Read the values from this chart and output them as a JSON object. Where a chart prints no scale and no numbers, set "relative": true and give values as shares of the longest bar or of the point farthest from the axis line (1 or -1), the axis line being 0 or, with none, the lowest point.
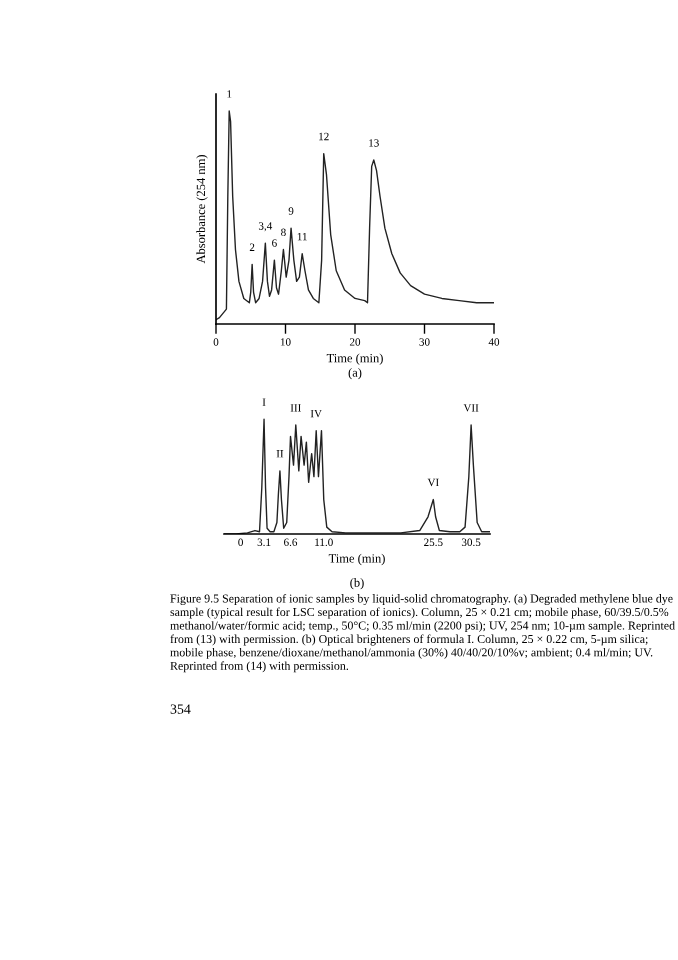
{
  "chart_data": [
    {
      "type": "line",
      "relative": true,
      "xlabel": "Time (min)",
      "ylabel": "Absorbance (254 nm)",
      "xlim": [
        0,
        40
      ],
      "xticks": [
        0,
        10,
        20,
        30,
        40
      ],
      "series": [
        {
          "color": "#222222",
          "x": [
            0,
            0.5,
            1.0,
            1.5,
            1.7,
            1.9,
            2.1,
            2.4,
            2.8,
            3.3,
            4.0,
            4.8,
            5.0,
            5.2,
            5.4,
            5.7,
            6.2,
            6.7,
            7.1,
            7.4,
            7.7,
            8.0,
            8.4,
            8.7,
            9.0,
            9.4,
            9.7,
            10.1,
            10.5,
            10.8,
            11.2,
            11.6,
            12.0,
            12.4,
            12.8,
            13.3,
            14.0,
            14.8,
            15.2,
            15.5,
            15.9,
            16.5,
            17.3,
            18.5,
            20.0,
            21.4,
            21.8,
            22.1,
            22.4,
            22.7,
            23.1,
            23.6,
            24.3,
            25.3,
            26.5,
            28,
            30,
            32.5,
            35,
            37.5,
            40
          ],
          "values": [
            0.02,
            0.03,
            0.05,
            0.07,
            0.6,
            1.0,
            0.95,
            0.6,
            0.35,
            0.2,
            0.12,
            0.1,
            0.15,
            0.28,
            0.15,
            0.1,
            0.12,
            0.2,
            0.38,
            0.2,
            0.13,
            0.16,
            0.3,
            0.17,
            0.14,
            0.25,
            0.35,
            0.22,
            0.3,
            0.45,
            0.3,
            0.2,
            0.22,
            0.33,
            0.25,
            0.16,
            0.12,
            0.1,
            0.3,
            0.8,
            0.7,
            0.42,
            0.25,
            0.16,
            0.12,
            0.11,
            0.1,
            0.45,
            0.74,
            0.77,
            0.72,
            0.6,
            0.45,
            0.33,
            0.24,
            0.18,
            0.14,
            0.12,
            0.11,
            0.1,
            0.1
          ]
        }
      ],
      "annotations": [
        {
          "text": "1",
          "x": 1.9,
          "y": 1.0
        },
        {
          "text": "2",
          "x": 5.2,
          "y": 0.28
        },
        {
          "text": "3,4",
          "x": 7.1,
          "y": 0.38
        },
        {
          "text": "6",
          "x": 8.4,
          "y": 0.3
        },
        {
          "text": "8",
          "x": 9.7,
          "y": 0.35
        },
        {
          "text": "9",
          "x": 10.8,
          "y": 0.45
        },
        {
          "text": "11",
          "x": 12.4,
          "y": 0.33
        },
        {
          "text": "12",
          "x": 15.5,
          "y": 0.8
        },
        {
          "text": "13",
          "x": 22.7,
          "y": 0.77
        },
        "(a)"
      ]
    },
    {
      "type": "line",
      "relative": true,
      "xlabel": "Time (min)",
      "xlim": [
        -2.2,
        33
      ],
      "xticks": [
        0,
        3.1,
        6.6,
        {
          "value": 11,
          "label": "11.0"
        },
        25.5,
        30.5
      ],
      "series": [
        {
          "color": "#222222",
          "x": [
            -2.2,
            -0.6,
            0.9,
            1.9,
            2.5,
            2.8,
            3.1,
            3.3,
            3.5,
            3.9,
            4.4,
            4.8,
            5.0,
            5.2,
            5.4,
            5.7,
            6.1,
            6.4,
            6.6,
            7.0,
            7.3,
            7.7,
            8.0,
            8.4,
            8.7,
            9.0,
            9.4,
            9.7,
            10.0,
            10.3,
            10.7,
            11.0,
            11.4,
            12.1,
            13.9,
            17.5,
            21.2,
            23.7,
            24.8,
            25.5,
            25.8,
            26.3,
            27.7,
            29.0,
            29.7,
            30.2,
            30.5,
            30.8,
            31.3,
            31.9,
            33
          ],
          "values": [
            0,
            0,
            0.01,
            0.03,
            0.02,
            0.4,
            1.0,
            0.4,
            0.05,
            0.02,
            0.02,
            0.1,
            0.35,
            0.55,
            0.3,
            0.05,
            0.1,
            0.5,
            0.85,
            0.6,
            0.95,
            0.55,
            0.85,
            0.6,
            0.8,
            0.45,
            0.7,
            0.5,
            0.9,
            0.5,
            0.9,
            0.3,
            0.06,
            0.02,
            0.01,
            0.01,
            0.01,
            0.03,
            0.15,
            0.3,
            0.15,
            0.03,
            0.02,
            0.02,
            0.06,
            0.5,
            0.95,
            0.6,
            0.1,
            0.02,
            0.02
          ]
        }
      ],
      "annotations": [
        {
          "text": "I",
          "x": 3.1,
          "y": 1.0
        },
        {
          "text": "II",
          "x": 5.2,
          "y": 0.55
        },
        {
          "text": "III",
          "x": 7.3,
          "y": 0.95
        },
        {
          "text": "IV",
          "x": 10.0,
          "y": 0.9
        },
        {
          "text": "VI",
          "x": 25.5,
          "y": 0.3
        },
        {
          "text": "VII",
          "x": 30.5,
          "y": 0.95
        },
        "(b)",
        "Figure 9.5 Separation of ionic samples by liquid-solid chromatography. (a) Degraded methylene blue dye sample (typical result for LSC separation of ionics). Column, 25 × 0.21 cm; mobile phase, 60/39.5/0.5% methanol/water/formic acid; temp., 50°C; 0.35 ml/min (2200 psi); UV, 254 nm; 10-µm sample. Reprinted from (13) with permission. (b) Optical brighteners of formula I. Column, 25 × 0.22 cm, 5-µm silica; mobile phase, benzene/dioxane/methanol/ammonia (30%) 40/40/20/10%v; ambient; 0.4 ml/min; UV. Reprinted from (14) with permission.",
        "354"
      ]
    }
  ]
}
